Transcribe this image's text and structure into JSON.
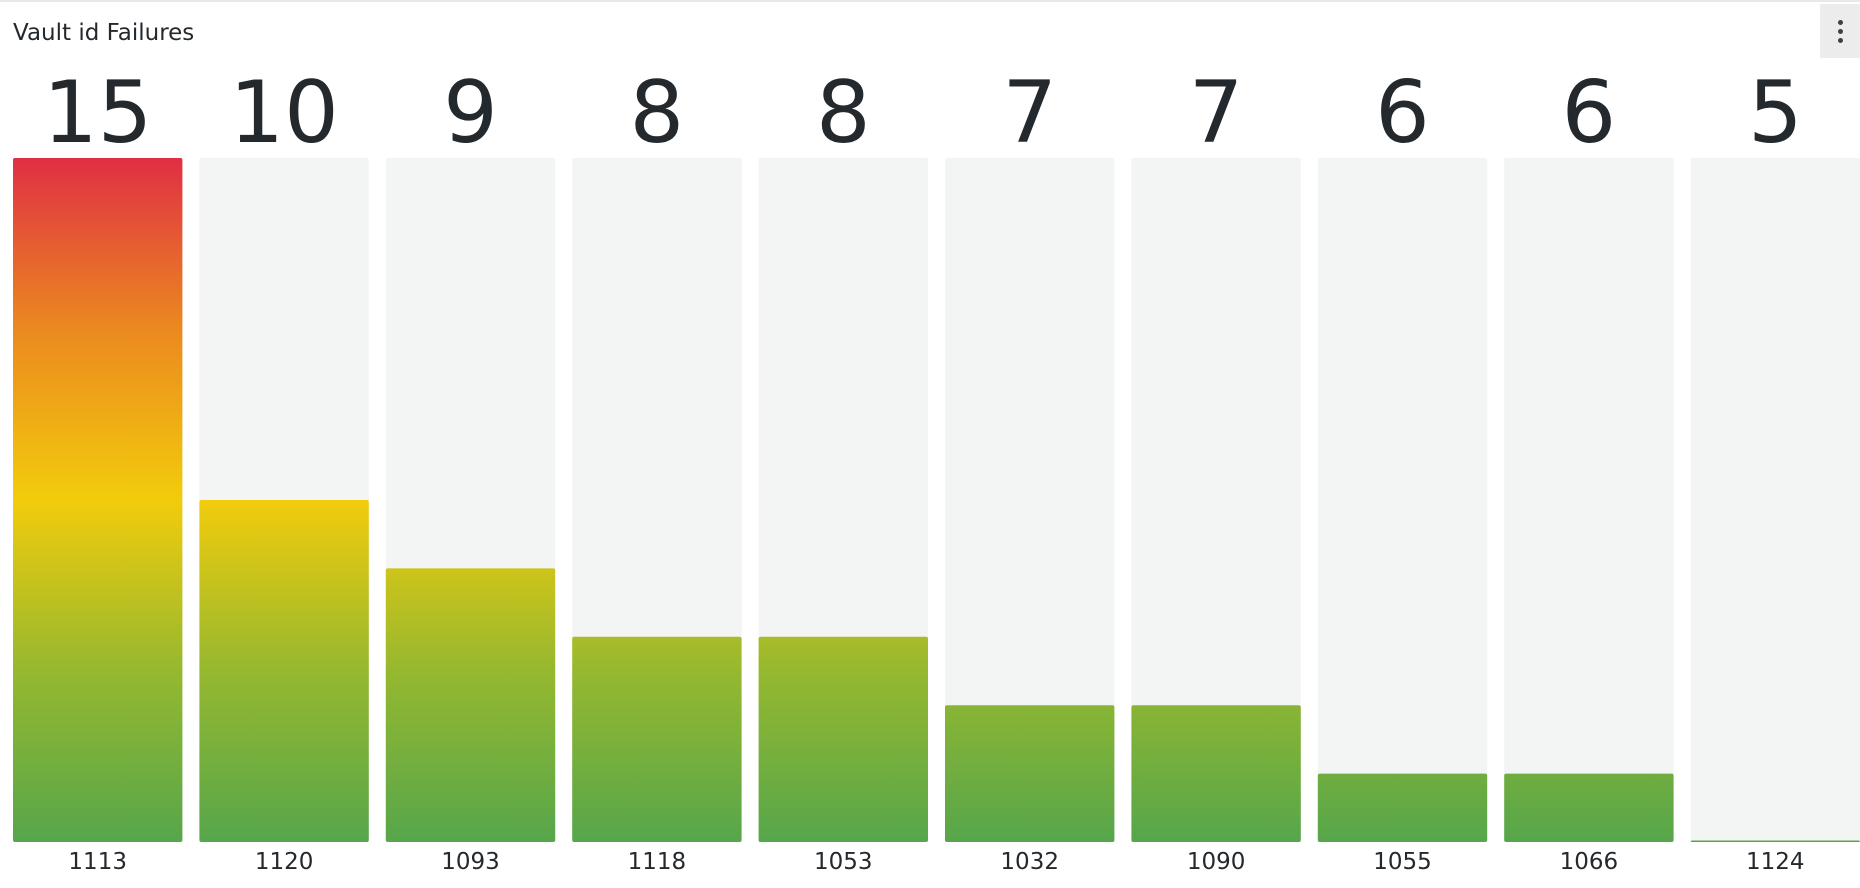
{
  "panel": {
    "title": "Vault id Failures"
  },
  "icons": {
    "menu": "more-vertical-icon"
  },
  "colors": {
    "track": "#f3f4f4",
    "gradient_low": "#56a64b",
    "gradient_mid_low": "#96b82f",
    "gradient_mid": "#f2cc0c",
    "gradient_mid_high": "#eb891f",
    "gradient_high": "#e02f44",
    "value_text": "#24292e",
    "label_text": "#24292e"
  },
  "chart_data": {
    "type": "bar",
    "orientation": "vertical",
    "categories": [
      "1113",
      "1120",
      "1093",
      "1118",
      "1053",
      "1032",
      "1090",
      "1055",
      "1066",
      "1124"
    ],
    "values": [
      15,
      10,
      9,
      8,
      8,
      7,
      7,
      6,
      6,
      5
    ],
    "title": "Vault id Failures",
    "xlabel": "",
    "ylabel": "",
    "ylim": [
      5,
      15
    ],
    "grid": false,
    "legend": "none"
  }
}
